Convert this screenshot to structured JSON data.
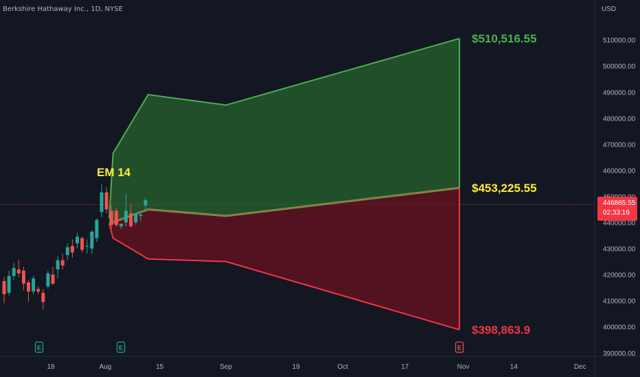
{
  "header": {
    "symbol": "Berkshire Hathaway Inc., 1D, NYSE",
    "currency": "USD"
  },
  "price_tag": {
    "price": "446865.55",
    "countdown": "02:33:16"
  },
  "colors": {
    "background": "#131722",
    "up": "#26a69a",
    "down": "#ef5350",
    "upper_band": "#4caf50",
    "lower_band": "#f23645",
    "annotation": "#ffeb3b"
  },
  "chart_data": {
    "type": "candlestick",
    "y_axis": {
      "ticks": [
        "510000.00",
        "500000.00",
        "490000.00",
        "480000.00",
        "470000.00",
        "460000.00",
        "450000.00",
        "440000.00",
        "430000.00",
        "420000.00",
        "410000.00",
        "400000.00",
        "390000.00"
      ],
      "ylim": [
        387000,
        520000
      ]
    },
    "x_axis": {
      "ticks": [
        "18",
        "Aug",
        "15",
        "Sep",
        "19",
        "Oct",
        "17",
        "Nov",
        "14",
        "Dec"
      ]
    },
    "candles": [
      {
        "o": 417500,
        "h": 419000,
        "l": 409000,
        "c": 412500
      },
      {
        "o": 413000,
        "h": 421500,
        "l": 412000,
        "c": 419500
      },
      {
        "o": 419500,
        "h": 424500,
        "l": 418000,
        "c": 422500
      },
      {
        "o": 422000,
        "h": 425500,
        "l": 419000,
        "c": 420500
      },
      {
        "o": 421500,
        "h": 423000,
        "l": 414000,
        "c": 416500
      },
      {
        "o": 417000,
        "h": 418000,
        "l": 409500,
        "c": 413500
      },
      {
        "o": 413500,
        "h": 419500,
        "l": 412500,
        "c": 418500
      },
      {
        "o": 414500,
        "h": 415500,
        "l": 412500,
        "c": 413500
      },
      {
        "o": 413000,
        "h": 414500,
        "l": 406500,
        "c": 409500
      },
      {
        "o": 415500,
        "h": 421500,
        "l": 414500,
        "c": 420500
      },
      {
        "o": 420000,
        "h": 423000,
        "l": 416000,
        "c": 416500
      },
      {
        "o": 422000,
        "h": 427000,
        "l": 418500,
        "c": 425500
      },
      {
        "o": 425500,
        "h": 428000,
        "l": 422000,
        "c": 423500
      },
      {
        "o": 427500,
        "h": 432000,
        "l": 425500,
        "c": 430500
      },
      {
        "o": 431000,
        "h": 433500,
        "l": 426500,
        "c": 428500
      },
      {
        "o": 432000,
        "h": 436000,
        "l": 430000,
        "c": 434500
      },
      {
        "o": 434000,
        "h": 434500,
        "l": 428500,
        "c": 429500
      },
      {
        "o": 431000,
        "h": 433500,
        "l": 428000,
        "c": 431000
      },
      {
        "o": 430000,
        "h": 437000,
        "l": 428000,
        "c": 436500
      },
      {
        "o": 434000,
        "h": 441500,
        "l": 432500,
        "c": 441000
      },
      {
        "o": 444000,
        "h": 454500,
        "l": 442000,
        "c": 451500
      },
      {
        "o": 451500,
        "h": 453500,
        "l": 443500,
        "c": 445000
      },
      {
        "o": 444500,
        "h": 446500,
        "l": 437500,
        "c": 439000
      },
      {
        "o": 444500,
        "h": 445500,
        "l": 438500,
        "c": 439000
      },
      {
        "o": 438500,
        "h": 439500,
        "l": 437500,
        "c": 439500
      },
      {
        "o": 440000,
        "h": 451000,
        "l": 438500,
        "c": 444500
      },
      {
        "o": 443500,
        "h": 447000,
        "l": 438000,
        "c": 438500
      },
      {
        "o": 440000,
        "h": 443500,
        "l": 439000,
        "c": 443500
      },
      {
        "o": 442500,
        "h": 443500,
        "l": 440500,
        "c": 443000
      },
      {
        "o": 446500,
        "h": 449500,
        "l": 444000,
        "c": 448500
      }
    ],
    "expected_move": {
      "label": "EM 14",
      "upper": [
        {
          "x": "Aug 2",
          "y": 441500
        },
        {
          "x": "Aug 3",
          "y": 466500
        },
        {
          "x": "Aug 12",
          "y": 489000
        },
        {
          "x": "Sep 1",
          "y": 485000
        },
        {
          "x": "Oct 31",
          "y": 510516.55
        }
      ],
      "middle": [
        {
          "x": "Aug 2",
          "y": 439500
        },
        {
          "x": "Aug 12",
          "y": 445000
        },
        {
          "x": "Sep 1",
          "y": 442500
        },
        {
          "x": "Oct 31",
          "y": 453225.55
        }
      ],
      "lower": [
        {
          "x": "Aug 2",
          "y": 439500
        },
        {
          "x": "Aug 3",
          "y": 434000
        },
        {
          "x": "Aug 12",
          "y": 426000
        },
        {
          "x": "Sep 1",
          "y": 425000
        },
        {
          "x": "Oct 31",
          "y": 398863.9
        }
      ],
      "labels": {
        "upper": "$510,516.55",
        "middle": "$453,225.55",
        "lower": "$398,863.9"
      }
    },
    "current_price_line": 446865.55,
    "event_markers": [
      {
        "x": "Jul 15",
        "letter": "E",
        "color": "#26a69a"
      },
      {
        "x": "Aug 5",
        "letter": "E",
        "color": "#26a69a"
      },
      {
        "x": "Oct 31",
        "letter": "E",
        "color": "#ef5350"
      }
    ],
    "grid": false
  }
}
